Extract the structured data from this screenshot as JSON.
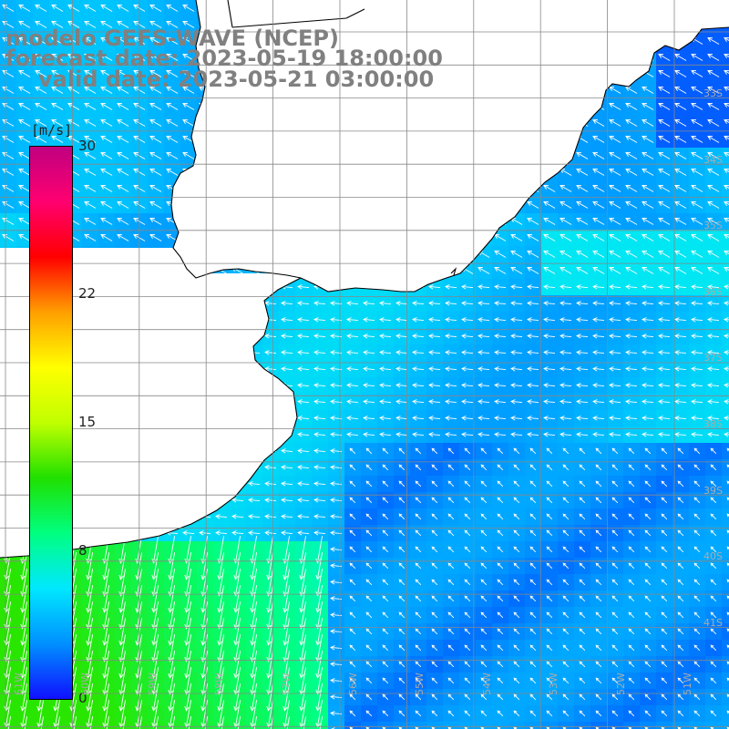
{
  "title": {
    "line1": "modelo GEFS-WAVE (NCEP)",
    "line2": "forecast date: 2023-05-19 18:00:00",
    "line3": "valid date: 2023-05-21 03:00:00"
  },
  "colorbar": {
    "unit": "[m/s]",
    "ticks": [
      "30",
      "22",
      "15",
      "8",
      "0"
    ],
    "tick_values": [
      30,
      22,
      15,
      8,
      0
    ],
    "range": [
      0,
      30
    ],
    "colors": [
      "#1010ff",
      "#0090ff",
      "#00e8ff",
      "#00ff80",
      "#20e000",
      "#c0ff00",
      "#ffff00",
      "#ffa000",
      "#ff0000",
      "#ff0070",
      "#c00080"
    ]
  },
  "map": {
    "lon_labels": [
      "61W",
      "60W",
      "59W",
      "58W",
      "57W",
      "56W",
      "55W",
      "54W",
      "53W",
      "52W",
      "51W"
    ],
    "lat_labels": [
      "33S",
      "34S",
      "35S",
      "36S",
      "37S",
      "38S",
      "39S",
      "40S",
      "41S"
    ],
    "land_color": "#ffffff",
    "coast_color": "#000000",
    "grid_color": "#888888",
    "arrow_color": "#ffffff"
  }
}
